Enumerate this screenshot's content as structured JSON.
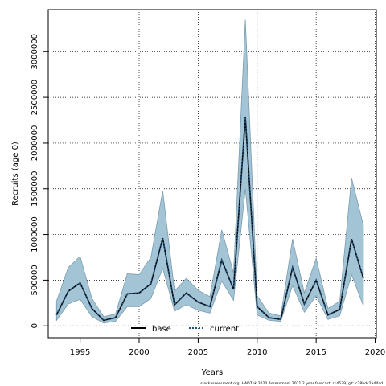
{
  "chart_data": {
    "type": "area",
    "title": "",
    "xlabel": "Years",
    "ylabel": "Recruits (age 0)",
    "xlim": [
      1992.3,
      2020.1
    ],
    "ylim": [
      -130000,
      3460000
    ],
    "grid": true,
    "x_ticks": [
      1995,
      2000,
      2005,
      2010,
      2015,
      2020
    ],
    "x_tick_labels": [
      "1995",
      "2000",
      "2005",
      "2010",
      "2015",
      "2020"
    ],
    "y_ticks": [
      0,
      500000,
      1000000,
      1500000,
      2000000,
      2500000,
      3000000
    ],
    "y_tick_labels": [
      "0",
      "500000",
      "1000000",
      "1500000",
      "2000000",
      "2500000",
      "3000000"
    ],
    "x": [
      1993,
      1994,
      1995,
      1996,
      1997,
      1998,
      1999,
      2000,
      2001,
      2002,
      2003,
      2004,
      2005,
      2006,
      2007,
      2008,
      2009,
      2010,
      2011,
      2012,
      2013,
      2014,
      2015,
      2016,
      2017,
      2018,
      2019
    ],
    "series": [
      {
        "name": "base",
        "line_style": "solid",
        "color": "#000000",
        "values": [
          120000,
          380000,
          470000,
          190000,
          60000,
          90000,
          350000,
          360000,
          460000,
          960000,
          230000,
          360000,
          260000,
          210000,
          720000,
          400000,
          2280000,
          210000,
          90000,
          70000,
          640000,
          240000,
          500000,
          120000,
          180000,
          950000,
          520000
        ],
        "lower": [
          60000,
          240000,
          290000,
          100000,
          30000,
          50000,
          210000,
          210000,
          300000,
          630000,
          160000,
          230000,
          170000,
          140000,
          490000,
          280000,
          1500000,
          120000,
          60000,
          50000,
          440000,
          150000,
          330000,
          70000,
          110000,
          560000,
          220000
        ],
        "upper": [
          270000,
          640000,
          760000,
          300000,
          100000,
          130000,
          570000,
          560000,
          750000,
          1480000,
          380000,
          520000,
          390000,
          320000,
          1050000,
          580000,
          3350000,
          330000,
          140000,
          110000,
          950000,
          360000,
          740000,
          190000,
          270000,
          1620000,
          1100000
        ]
      },
      {
        "name": "current",
        "line_style": "dotted",
        "color": "#1f4e79",
        "values": [
          120000,
          380000,
          470000,
          190000,
          60000,
          90000,
          350000,
          360000,
          460000,
          960000,
          230000,
          360000,
          260000,
          210000,
          720000,
          400000,
          2280000,
          210000,
          90000,
          70000,
          640000,
          240000,
          500000,
          120000,
          180000,
          950000,
          520000
        ]
      }
    ],
    "band_color": "#a3c4d4",
    "band_edge_color": "#7a9db0",
    "legend_position": "bottom-center",
    "footer": "stockassessment.org, HAD7bk 2020 Assessment 2021 2 year forecast, r14539, git: c28bdc2a44ad"
  }
}
